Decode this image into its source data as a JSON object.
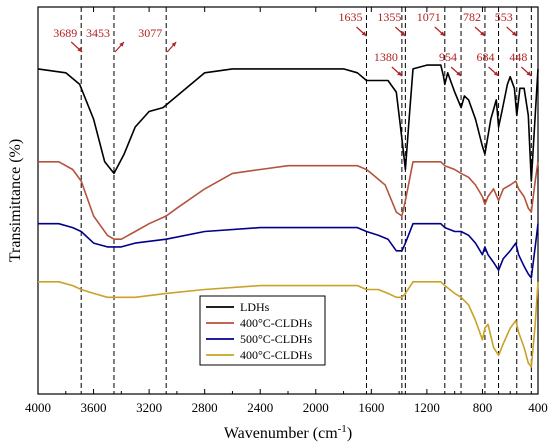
{
  "chart_data": {
    "type": "line",
    "xlabel": "Wavenumber (cm",
    "xlabel_sup": "-1",
    "xlabel_suffix": ")",
    "ylabel": "Transimittance (%)",
    "xlim": [
      4000,
      400
    ],
    "x_reversed": true,
    "x_ticks": [
      4000,
      3600,
      3200,
      2800,
      2400,
      2000,
      1600,
      1200,
      800,
      400
    ],
    "ylim": [
      0,
      100
    ],
    "y_ticks_shown": false,
    "grid": false,
    "legend_position": "bottom-center",
    "annotation_color": "#b22222",
    "annotations": [
      {
        "label": "3689",
        "x": 3689,
        "label_row": "top"
      },
      {
        "label": "3453",
        "x": 3453,
        "label_row": "top"
      },
      {
        "label": "3077",
        "x": 3077,
        "label_row": "top"
      },
      {
        "label": "1635",
        "x": 1635,
        "label_row": "high"
      },
      {
        "label": "1380",
        "x": 1380,
        "label_row": "low"
      },
      {
        "label": "1355",
        "x": 1355,
        "label_row": "high"
      },
      {
        "label": "1071",
        "x": 1071,
        "label_row": "high"
      },
      {
        "label": "954",
        "x": 954,
        "label_row": "low"
      },
      {
        "label": "782",
        "x": 782,
        "label_row": "high"
      },
      {
        "label": "684",
        "x": 684,
        "label_row": "low"
      },
      {
        "label": "553",
        "x": 553,
        "label_row": "high"
      },
      {
        "label": "448",
        "x": 448,
        "label_row": "low"
      }
    ],
    "series": [
      {
        "name": "LDHs",
        "color": "#000000",
        "points": [
          [
            4000,
            84
          ],
          [
            3800,
            83
          ],
          [
            3700,
            80
          ],
          [
            3600,
            71
          ],
          [
            3520,
            60
          ],
          [
            3453,
            57
          ],
          [
            3380,
            62
          ],
          [
            3300,
            69
          ],
          [
            3200,
            73
          ],
          [
            3100,
            74
          ],
          [
            3000,
            77
          ],
          [
            2900,
            80
          ],
          [
            2800,
            83
          ],
          [
            2600,
            84
          ],
          [
            2400,
            84
          ],
          [
            2200,
            84
          ],
          [
            2000,
            84
          ],
          [
            1800,
            84
          ],
          [
            1700,
            83
          ],
          [
            1635,
            81
          ],
          [
            1550,
            81
          ],
          [
            1480,
            81
          ],
          [
            1420,
            78
          ],
          [
            1380,
            66
          ],
          [
            1355,
            58
          ],
          [
            1330,
            70
          ],
          [
            1300,
            84
          ],
          [
            1200,
            85
          ],
          [
            1150,
            85
          ],
          [
            1100,
            85
          ],
          [
            1080,
            82
          ],
          [
            1071,
            80
          ],
          [
            1050,
            83
          ],
          [
            1000,
            78
          ],
          [
            954,
            74
          ],
          [
            930,
            77
          ],
          [
            900,
            76
          ],
          [
            850,
            71
          ],
          [
            800,
            64
          ],
          [
            782,
            62
          ],
          [
            740,
            71
          ],
          [
            700,
            76
          ],
          [
            684,
            69
          ],
          [
            660,
            73
          ],
          [
            620,
            80
          ],
          [
            600,
            82
          ],
          [
            570,
            79
          ],
          [
            553,
            72
          ],
          [
            530,
            79
          ],
          [
            500,
            79
          ],
          [
            470,
            72
          ],
          [
            448,
            55
          ],
          [
            420,
            72
          ],
          [
            400,
            84
          ]
        ]
      },
      {
        "name": "400°C-CLDHs",
        "color": "#b5533b",
        "points": [
          [
            4000,
            60
          ],
          [
            3850,
            60
          ],
          [
            3750,
            58
          ],
          [
            3689,
            55
          ],
          [
            3600,
            46
          ],
          [
            3500,
            41
          ],
          [
            3453,
            40
          ],
          [
            3400,
            40
          ],
          [
            3300,
            42
          ],
          [
            3200,
            44
          ],
          [
            3077,
            46
          ],
          [
            3000,
            48
          ],
          [
            2800,
            53
          ],
          [
            2600,
            57
          ],
          [
            2400,
            58
          ],
          [
            2200,
            59
          ],
          [
            2000,
            59
          ],
          [
            1800,
            59
          ],
          [
            1700,
            59
          ],
          [
            1635,
            58
          ],
          [
            1600,
            57
          ],
          [
            1500,
            54
          ],
          [
            1420,
            47
          ],
          [
            1380,
            46
          ],
          [
            1355,
            50
          ],
          [
            1300,
            60
          ],
          [
            1200,
            60
          ],
          [
            1100,
            60
          ],
          [
            1071,
            59
          ],
          [
            1000,
            58
          ],
          [
            954,
            57
          ],
          [
            900,
            56
          ],
          [
            850,
            54
          ],
          [
            800,
            51
          ],
          [
            782,
            49
          ],
          [
            760,
            51
          ],
          [
            720,
            53
          ],
          [
            684,
            50
          ],
          [
            650,
            53
          ],
          [
            600,
            54
          ],
          [
            560,
            55
          ],
          [
            540,
            53
          ],
          [
            500,
            51
          ],
          [
            470,
            48
          ],
          [
            448,
            47
          ],
          [
            420,
            55
          ],
          [
            400,
            60
          ]
        ]
      },
      {
        "name": "500°C-CLDHs",
        "color": "#00008b",
        "points": [
          [
            4000,
            44
          ],
          [
            3850,
            44
          ],
          [
            3750,
            43
          ],
          [
            3689,
            42
          ],
          [
            3600,
            39
          ],
          [
            3500,
            38
          ],
          [
            3453,
            38
          ],
          [
            3400,
            38
          ],
          [
            3300,
            39
          ],
          [
            3077,
            40
          ],
          [
            2800,
            42
          ],
          [
            2400,
            43
          ],
          [
            2000,
            43
          ],
          [
            1800,
            43
          ],
          [
            1700,
            43
          ],
          [
            1635,
            42
          ],
          [
            1550,
            41
          ],
          [
            1480,
            40
          ],
          [
            1420,
            37
          ],
          [
            1380,
            37
          ],
          [
            1355,
            39
          ],
          [
            1300,
            44
          ],
          [
            1200,
            44
          ],
          [
            1100,
            44
          ],
          [
            1071,
            43
          ],
          [
            1000,
            42
          ],
          [
            954,
            42
          ],
          [
            900,
            41
          ],
          [
            850,
            39
          ],
          [
            800,
            36
          ],
          [
            782,
            38
          ],
          [
            760,
            36
          ],
          [
            720,
            34
          ],
          [
            684,
            32
          ],
          [
            650,
            35
          ],
          [
            600,
            37
          ],
          [
            560,
            39
          ],
          [
            540,
            36
          ],
          [
            500,
            33
          ],
          [
            470,
            31
          ],
          [
            448,
            30
          ],
          [
            420,
            38
          ],
          [
            400,
            44
          ]
        ]
      },
      {
        "name": "400°C-CLDHs",
        "color": "#c9a227",
        "points": [
          [
            4000,
            29
          ],
          [
            3850,
            29
          ],
          [
            3750,
            28
          ],
          [
            3689,
            27
          ],
          [
            3600,
            26
          ],
          [
            3500,
            25
          ],
          [
            3453,
            25
          ],
          [
            3300,
            25
          ],
          [
            3077,
            26
          ],
          [
            2800,
            27
          ],
          [
            2400,
            28
          ],
          [
            2000,
            28
          ],
          [
            1800,
            28
          ],
          [
            1700,
            28
          ],
          [
            1635,
            27
          ],
          [
            1550,
            27
          ],
          [
            1480,
            26
          ],
          [
            1420,
            25
          ],
          [
            1380,
            25
          ],
          [
            1355,
            26
          ],
          [
            1300,
            29
          ],
          [
            1200,
            29
          ],
          [
            1100,
            29
          ],
          [
            1071,
            28
          ],
          [
            1000,
            26
          ],
          [
            954,
            25
          ],
          [
            900,
            23
          ],
          [
            850,
            19
          ],
          [
            800,
            14
          ],
          [
            782,
            17
          ],
          [
            760,
            18
          ],
          [
            720,
            12
          ],
          [
            684,
            10
          ],
          [
            650,
            13
          ],
          [
            600,
            17
          ],
          [
            560,
            19
          ],
          [
            540,
            16
          ],
          [
            500,
            12
          ],
          [
            470,
            8
          ],
          [
            448,
            7
          ],
          [
            420,
            18
          ],
          [
            400,
            29
          ]
        ]
      }
    ]
  }
}
